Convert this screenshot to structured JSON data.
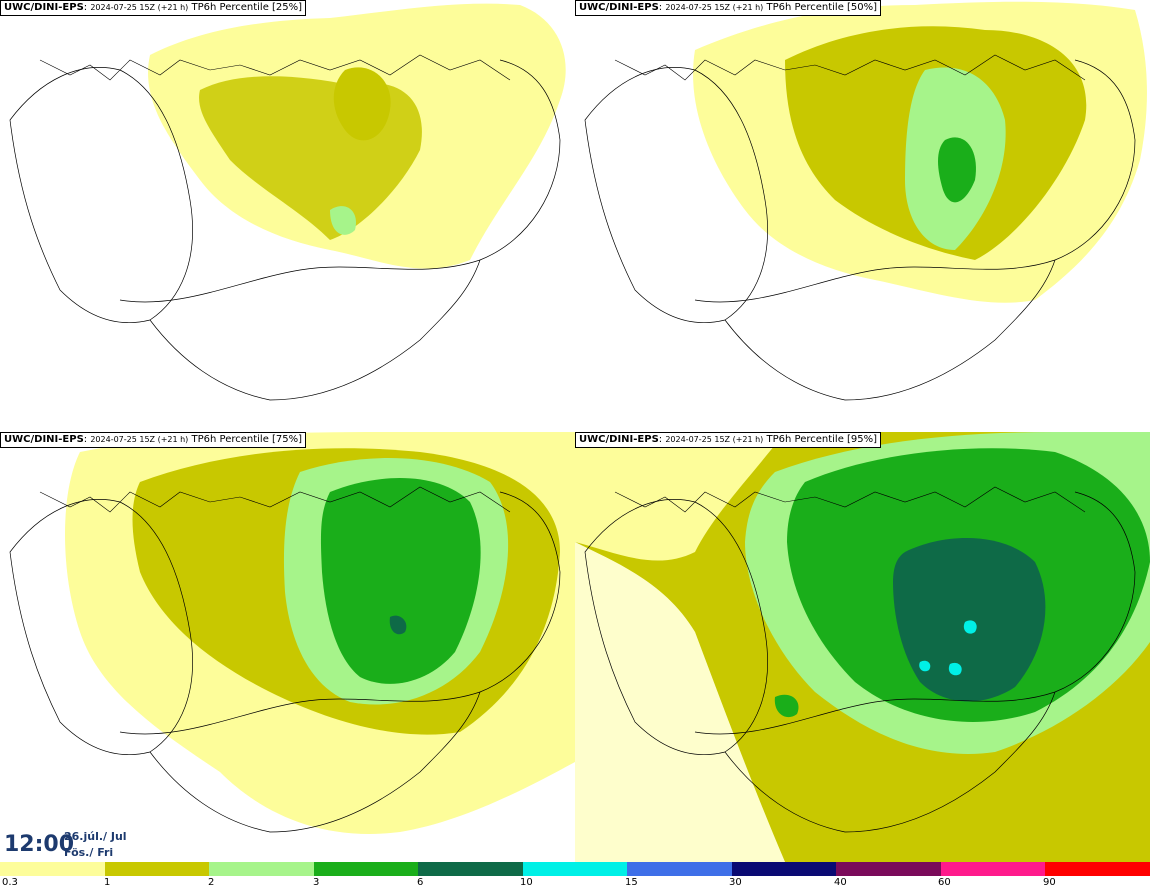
{
  "panels": [
    {
      "source": "UWC/DINI-EPS",
      "run": "2024-07-25 15Z (+21 h)",
      "field": "TP6h Percentile [25%]"
    },
    {
      "source": "UWC/DINI-EPS",
      "run": "2024-07-25 15Z (+21 h)",
      "field": "TP6h Percentile [50%]"
    },
    {
      "source": "UWC/DINI-EPS",
      "run": "2024-07-25 15Z (+21 h)",
      "field": "TP6h Percentile [75%]"
    },
    {
      "source": "UWC/DINI-EPS",
      "run": "2024-07-25 15Z (+21 h)",
      "field": "TP6h Percentile [95%]"
    }
  ],
  "valid_time": {
    "hour": "12:00",
    "date_line": "26.júl./ Jul",
    "day_line": "Fös./ Fri"
  },
  "legend": {
    "colors": [
      "#fdfd9a",
      "#c8c800",
      "#a6f48a",
      "#1aae1a",
      "#0e6a47",
      "#00f0e6",
      "#3e6fe8",
      "#0a0a73",
      "#7a0a5a",
      "#ff1a8c",
      "#ff0000"
    ],
    "labels": [
      "0.3",
      "1",
      "2",
      "3",
      "6",
      "10",
      "15",
      "30",
      "40",
      "60",
      "90"
    ]
  }
}
